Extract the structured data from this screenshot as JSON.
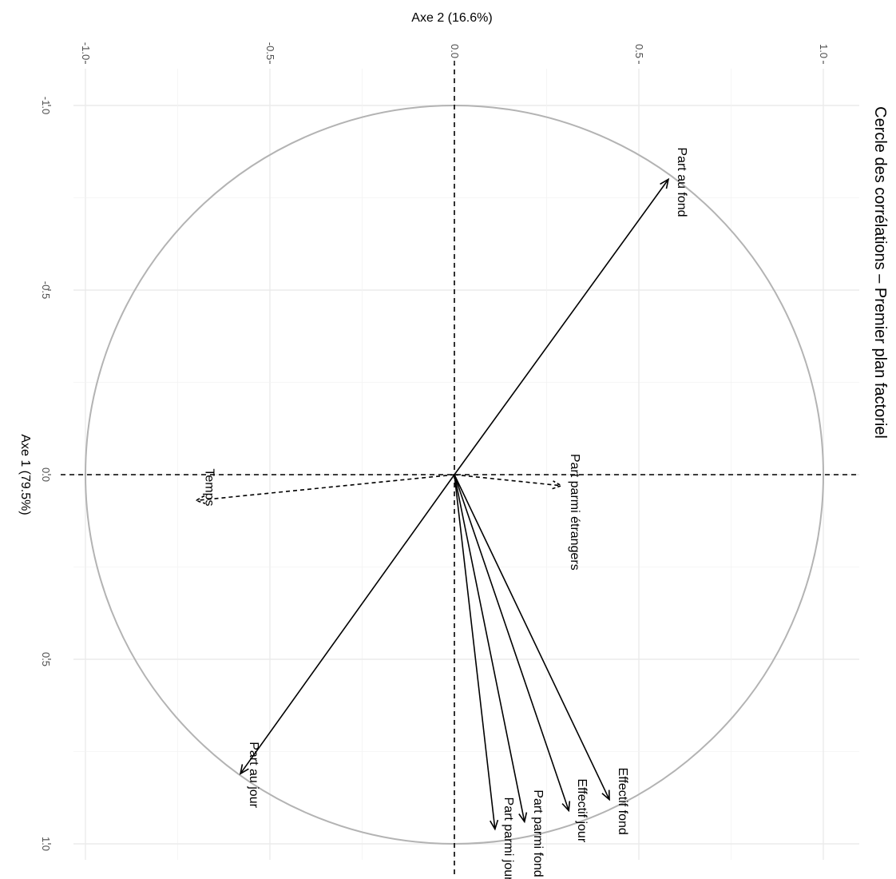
{
  "chart_data": {
    "type": "scatter",
    "title": "Cercle des corrélations – Premier plan factoriel",
    "xlabel": "Axe 1 (79.5%)",
    "ylabel": "Axe 2 (16.6%)",
    "xlim": [
      -1.0,
      1.0
    ],
    "ylim": [
      -1.0,
      1.0
    ],
    "x_ticks": [
      "-1.0",
      "-0.5",
      "0.0",
      "0.5",
      "1.0"
    ],
    "y_ticks": [
      "-1.0",
      "-0.5",
      "0.0",
      "0.5",
      "1.0"
    ],
    "rotated": "90deg-clockwise",
    "grid": true,
    "unit_circle": true,
    "reference_lines": {
      "x": 0,
      "y": 0,
      "style": "dashed"
    },
    "vectors": [
      {
        "name": "Part au fond",
        "x": -0.8,
        "y": 0.58,
        "style": "solid"
      },
      {
        "name": "Part parmi étrangers",
        "x": 0.03,
        "y": 0.29,
        "style": "dashed"
      },
      {
        "name": "Temps",
        "x": 0.07,
        "y": -0.7,
        "style": "dashed"
      },
      {
        "name": "Part au jour",
        "x": 0.81,
        "y": -0.58,
        "style": "solid"
      },
      {
        "name": "Effectif fond",
        "x": 0.88,
        "y": 0.42,
        "style": "solid"
      },
      {
        "name": "Effectif jour",
        "x": 0.91,
        "y": 0.31,
        "style": "solid"
      },
      {
        "name": "Part parmi fond",
        "x": 0.94,
        "y": 0.19,
        "style": "solid"
      },
      {
        "name": "Part parmi jour",
        "x": 0.96,
        "y": 0.11,
        "style": "solid"
      }
    ]
  }
}
